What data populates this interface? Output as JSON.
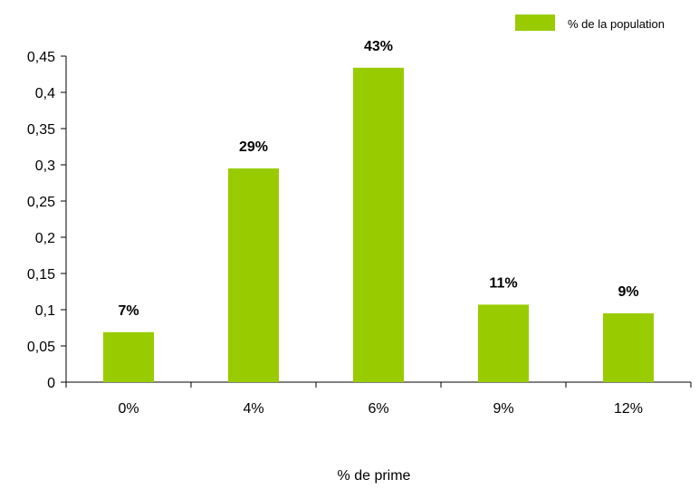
{
  "chart_data": {
    "type": "bar",
    "title": "",
    "xlabel": "% de prime",
    "ylabel": "",
    "categories": [
      "0%",
      "4%",
      "6%",
      "9%",
      "12%"
    ],
    "series": [
      {
        "name": "% de la population",
        "values": [
          0.069,
          0.295,
          0.434,
          0.107,
          0.095
        ],
        "labels": [
          "7%",
          "29%",
          "43%",
          "11%",
          "9%"
        ],
        "color": "#99CC00"
      }
    ],
    "ylim": [
      0,
      0.45
    ],
    "yticks": [
      0,
      0.05,
      0.1,
      0.15,
      0.2,
      0.25,
      0.3,
      0.35,
      0.4,
      0.45
    ],
    "ytick_labels": [
      "0",
      "0,05",
      "0,1",
      "0,15",
      "0,2",
      "0,25",
      "0,3",
      "0,35",
      "0,4",
      "0,45"
    ],
    "grid": false,
    "legend_position": "top-right"
  }
}
